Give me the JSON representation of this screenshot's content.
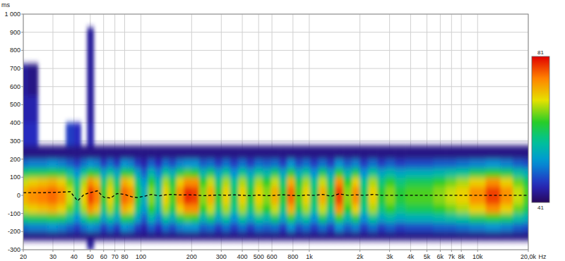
{
  "chart_data": {
    "type": "heatmap",
    "xlabel": "Hz",
    "ylabel": "ms",
    "log": "x",
    "grid": true,
    "xlim": [
      20,
      20000
    ],
    "ylim": [
      -300,
      1000
    ],
    "xticks": [
      20,
      30,
      40,
      50,
      60,
      70,
      80,
      100,
      200,
      300,
      400,
      500,
      600,
      800,
      {
        "value": 1000,
        "label": "1k"
      },
      {
        "value": 2000,
        "label": "2k"
      },
      {
        "value": 3000,
        "label": "3k"
      },
      {
        "value": 4000,
        "label": "4k"
      },
      {
        "value": 5000,
        "label": "5k"
      },
      {
        "value": 6000,
        "label": "6k"
      },
      {
        "value": 7000,
        "label": "7k"
      },
      {
        "value": 8000,
        "label": "8k"
      },
      {
        "value": 10000,
        "label": "10k"
      },
      {
        "value": 20000,
        "label": "20,0k"
      }
    ],
    "yticks": [
      -300,
      -200,
      -100,
      0,
      100,
      200,
      300,
      400,
      500,
      600,
      700,
      800,
      900,
      {
        "value": 1000,
        "label": "1 000"
      }
    ],
    "color_range": [
      41,
      81
    ],
    "color_ticks": [
      41,
      81
    ],
    "x": [
      20,
      23,
      26,
      30,
      34,
      38,
      42,
      46,
      50,
      55,
      60,
      66,
      72,
      80,
      88,
      95,
      105,
      115,
      128,
      140,
      155,
      170,
      190,
      210,
      235,
      260,
      290,
      320,
      360,
      400,
      450,
      500,
      560,
      630,
      700,
      780,
      870,
      960,
      1070,
      1200,
      1350,
      1500,
      1700,
      1900,
      2100,
      2400,
      2700,
      3000,
      3500,
      4000,
      5000,
      6000,
      7000,
      8000,
      10000,
      12500,
      15000,
      17500,
      20000
    ],
    "y": [
      -275,
      -225,
      -175,
      -125,
      -75,
      -25,
      25,
      75,
      125,
      175,
      225,
      325,
      475,
      625,
      825
    ],
    "cells": [
      [
        null,
        null,
        null,
        null,
        null,
        null,
        null,
        null,
        44,
        null,
        null,
        null,
        null,
        null,
        null,
        null,
        null,
        null,
        null,
        null,
        null,
        null,
        null,
        null,
        null,
        null,
        null,
        null,
        null,
        null,
        null,
        null,
        null,
        null,
        null,
        null,
        null,
        null,
        null,
        null,
        null,
        null,
        null,
        null,
        null,
        null,
        null,
        null,
        null,
        null,
        null,
        null,
        null,
        null,
        null,
        null,
        null,
        null,
        null
      ],
      [
        43,
        43,
        43,
        43,
        43,
        43,
        43,
        43,
        43,
        43,
        43,
        43,
        43,
        43,
        43,
        43,
        43,
        43,
        43,
        43,
        43,
        43,
        43,
        43,
        43,
        43,
        43,
        43,
        43,
        43,
        43,
        43,
        43,
        43,
        43,
        43,
        43,
        43,
        43,
        43,
        43,
        43,
        43,
        43,
        43,
        43,
        43,
        43,
        43,
        43,
        43,
        43,
        43,
        43,
        43,
        43,
        43,
        43,
        43
      ],
      [
        50,
        51,
        51,
        52,
        51,
        49,
        47,
        50,
        52,
        51,
        47,
        50,
        47,
        52,
        51,
        47,
        45,
        49,
        46,
        50,
        48,
        51,
        52,
        52,
        49,
        50,
        47,
        50,
        47,
        50,
        47,
        50,
        49,
        50,
        47,
        52,
        48,
        50,
        47,
        50,
        47,
        52,
        49,
        51,
        47,
        50,
        47,
        49,
        47,
        48,
        48,
        49,
        49,
        50,
        51,
        52,
        51,
        49,
        48
      ],
      [
        60,
        61,
        61,
        62,
        61,
        57,
        52,
        58,
        63,
        61,
        54,
        58,
        54,
        62,
        61,
        54,
        49,
        56,
        51,
        58,
        55,
        61,
        64,
        63,
        56,
        60,
        54,
        58,
        52,
        58,
        54,
        58,
        56,
        60,
        54,
        62,
        55,
        58,
        52,
        60,
        54,
        63,
        56,
        61,
        52,
        58,
        54,
        56,
        54,
        55,
        55,
        56,
        57,
        58,
        61,
        63,
        61,
        57,
        55
      ],
      [
        68,
        70,
        71,
        72,
        70,
        65,
        58,
        67,
        74,
        71,
        59,
        67,
        59,
        72,
        70,
        59,
        53,
        63,
        56,
        67,
        61,
        70,
        74,
        74,
        63,
        68,
        59,
        67,
        58,
        67,
        59,
        67,
        63,
        68,
        59,
        72,
        61,
        67,
        58,
        68,
        59,
        74,
        63,
        70,
        58,
        67,
        59,
        63,
        59,
        61,
        61,
        63,
        65,
        67,
        70,
        74,
        70,
        65,
        61
      ],
      [
        72,
        74,
        75,
        76,
        74,
        68,
        60,
        70,
        78,
        75,
        62,
        70,
        62,
        76,
        74,
        62,
        55,
        66,
        58,
        70,
        64,
        74,
        79,
        78,
        66,
        72,
        62,
        70,
        60,
        70,
        62,
        70,
        66,
        72,
        62,
        76,
        64,
        70,
        60,
        72,
        62,
        78,
        66,
        74,
        60,
        70,
        62,
        66,
        62,
        64,
        64,
        66,
        68,
        70,
        74,
        78,
        74,
        68,
        64
      ],
      [
        72,
        74,
        75,
        76,
        74,
        68,
        60,
        70,
        78,
        75,
        62,
        70,
        62,
        76,
        74,
        62,
        55,
        66,
        58,
        70,
        64,
        74,
        79,
        78,
        66,
        72,
        62,
        70,
        60,
        70,
        62,
        70,
        66,
        72,
        62,
        76,
        64,
        70,
        60,
        72,
        62,
        78,
        66,
        74,
        60,
        70,
        62,
        66,
        62,
        64,
        64,
        66,
        68,
        70,
        74,
        78,
        74,
        68,
        64
      ],
      [
        68,
        70,
        71,
        72,
        70,
        65,
        58,
        67,
        74,
        71,
        59,
        67,
        59,
        72,
        70,
        59,
        53,
        63,
        56,
        67,
        61,
        70,
        74,
        74,
        63,
        68,
        59,
        67,
        58,
        67,
        59,
        67,
        63,
        68,
        59,
        72,
        61,
        67,
        58,
        68,
        59,
        74,
        63,
        70,
        58,
        67,
        59,
        63,
        59,
        61,
        61,
        63,
        65,
        67,
        70,
        74,
        70,
        65,
        61
      ],
      [
        60,
        61,
        61,
        62,
        61,
        57,
        52,
        58,
        63,
        61,
        54,
        58,
        54,
        62,
        61,
        54,
        49,
        56,
        51,
        58,
        55,
        61,
        64,
        63,
        56,
        60,
        54,
        58,
        52,
        58,
        54,
        58,
        56,
        60,
        54,
        62,
        55,
        58,
        52,
        60,
        54,
        63,
        56,
        61,
        52,
        58,
        54,
        56,
        54,
        55,
        55,
        56,
        57,
        58,
        61,
        63,
        61,
        57,
        55
      ],
      [
        50,
        51,
        51,
        52,
        51,
        49,
        47,
        50,
        52,
        51,
        47,
        50,
        47,
        52,
        51,
        47,
        45,
        49,
        46,
        50,
        48,
        51,
        52,
        52,
        49,
        50,
        47,
        50,
        47,
        50,
        47,
        50,
        49,
        50,
        47,
        52,
        48,
        50,
        47,
        50,
        47,
        52,
        49,
        51,
        47,
        50,
        47,
        49,
        47,
        48,
        48,
        49,
        49,
        50,
        51,
        52,
        51,
        49,
        48
      ],
      [
        43,
        43,
        43,
        43,
        43,
        43,
        43,
        43,
        43,
        43,
        43,
        43,
        43,
        43,
        43,
        43,
        43,
        43,
        43,
        43,
        43,
        43,
        43,
        43,
        43,
        43,
        43,
        43,
        43,
        43,
        43,
        43,
        43,
        43,
        43,
        43,
        43,
        43,
        43,
        43,
        43,
        43,
        43,
        43,
        43,
        43,
        43,
        43,
        43,
        43,
        43,
        43,
        43,
        43,
        43,
        43,
        43,
        43,
        43
      ],
      [
        46,
        46,
        null,
        null,
        null,
        47,
        46,
        null,
        45,
        null,
        null,
        null,
        null,
        null,
        null,
        null,
        null,
        null,
        null,
        null,
        null,
        null,
        null,
        null,
        null,
        null,
        null,
        null,
        null,
        null,
        null,
        null,
        null,
        null,
        null,
        null,
        null,
        null,
        null,
        null,
        null,
        null,
        null,
        null,
        null,
        null,
        null,
        null,
        null,
        null,
        null,
        null,
        null,
        null,
        null,
        null,
        null,
        null,
        null
      ],
      [
        45,
        45,
        null,
        null,
        null,
        null,
        null,
        null,
        44,
        null,
        null,
        null,
        null,
        null,
        null,
        null,
        null,
        null,
        null,
        null,
        null,
        null,
        null,
        null,
        null,
        null,
        null,
        null,
        null,
        null,
        null,
        null,
        null,
        null,
        null,
        null,
        null,
        null,
        null,
        null,
        null,
        null,
        null,
        null,
        null,
        null,
        null,
        null,
        null,
        null,
        null,
        null,
        null,
        null,
        null,
        null,
        null,
        null,
        null
      ],
      [
        44,
        43,
        null,
        null,
        null,
        null,
        null,
        null,
        44,
        null,
        null,
        null,
        null,
        null,
        null,
        null,
        null,
        null,
        null,
        null,
        null,
        null,
        null,
        null,
        null,
        null,
        null,
        null,
        null,
        null,
        null,
        null,
        null,
        null,
        null,
        null,
        null,
        null,
        null,
        null,
        null,
        null,
        null,
        null,
        null,
        null,
        null,
        null,
        null,
        null,
        null,
        null,
        null,
        null,
        null,
        null,
        null,
        null,
        null
      ],
      [
        null,
        null,
        null,
        null,
        null,
        null,
        null,
        null,
        44,
        null,
        null,
        null,
        null,
        null,
        null,
        null,
        null,
        null,
        null,
        null,
        null,
        null,
        null,
        null,
        null,
        null,
        null,
        null,
        null,
        null,
        null,
        null,
        null,
        null,
        null,
        null,
        null,
        null,
        null,
        null,
        null,
        null,
        null,
        null,
        null,
        null,
        null,
        null,
        null,
        null,
        null,
        null,
        null,
        null,
        null,
        null,
        null,
        null,
        null
      ]
    ],
    "series": [
      {
        "color": "#000000",
        "line_style": "dashed",
        "values": [
          15,
          15,
          15,
          16,
          18,
          20,
          -30,
          5,
          15,
          25,
          -10,
          -15,
          10,
          5,
          -8,
          -12,
          -5,
          5,
          -3,
          3,
          5,
          2,
          3,
          2,
          -2,
          0,
          2,
          0,
          3,
          0,
          -2,
          2,
          -2,
          0,
          3,
          0,
          -2,
          2,
          0,
          5,
          -5,
          8,
          0,
          3,
          0,
          5,
          0,
          0,
          0,
          0,
          0,
          0,
          0,
          0,
          0,
          0,
          0,
          0,
          0
        ]
      }
    ]
  }
}
